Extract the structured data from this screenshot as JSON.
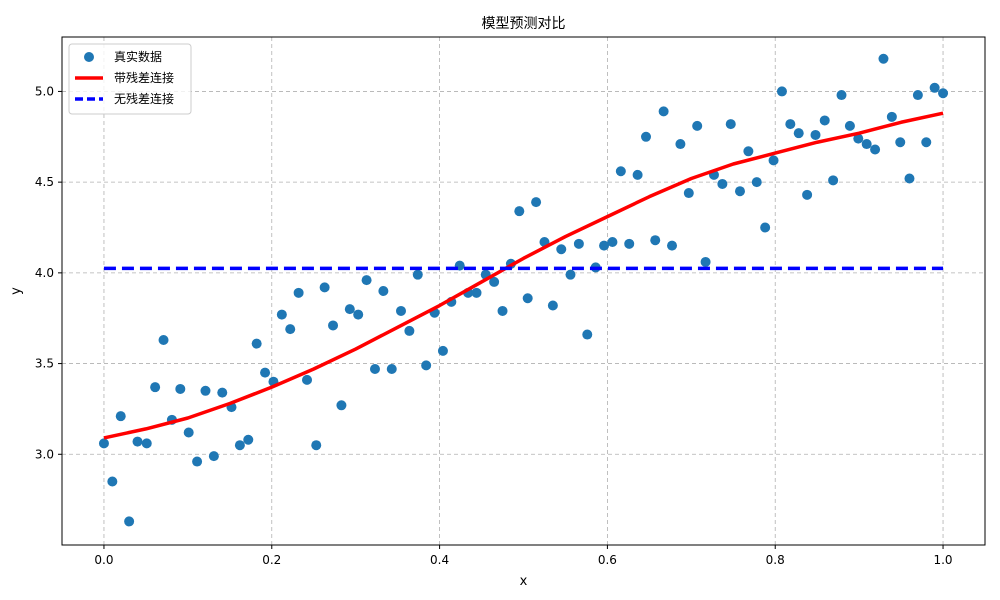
{
  "chart_data": {
    "type": "scatter",
    "title": "模型预测对比",
    "xlabel": "x",
    "ylabel": "y",
    "xlim": [
      -0.05,
      1.05
    ],
    "ylim": [
      2.5,
      5.3
    ],
    "x_ticks": [
      0.0,
      0.2,
      0.4,
      0.6,
      0.8,
      1.0
    ],
    "x_tick_labels": [
      "0.0",
      "0.2",
      "0.4",
      "0.6",
      "0.8",
      "1.0"
    ],
    "y_ticks": [
      3.0,
      3.5,
      4.0,
      4.5,
      5.0
    ],
    "y_tick_labels": [
      "3.0",
      "3.5",
      "4.0",
      "4.5",
      "5.0"
    ],
    "grid": true,
    "legend_position": "top-left",
    "series": [
      {
        "name": "真实数据",
        "kind": "scatter",
        "color": "#1f77b4",
        "x": [
          0.0,
          0.01,
          0.02,
          0.03,
          0.04,
          0.051,
          0.061,
          0.071,
          0.081,
          0.091,
          0.101,
          0.111,
          0.121,
          0.131,
          0.141,
          0.152,
          0.162,
          0.172,
          0.182,
          0.192,
          0.202,
          0.212,
          0.222,
          0.232,
          0.242,
          0.253,
          0.263,
          0.273,
          0.283,
          0.293,
          0.303,
          0.313,
          0.323,
          0.333,
          0.343,
          0.354,
          0.364,
          0.374,
          0.384,
          0.394,
          0.404,
          0.414,
          0.424,
          0.434,
          0.444,
          0.455,
          0.465,
          0.475,
          0.485,
          0.495,
          0.505,
          0.515,
          0.525,
          0.535,
          0.545,
          0.556,
          0.566,
          0.576,
          0.586,
          0.596,
          0.606,
          0.616,
          0.626,
          0.636,
          0.646,
          0.657,
          0.667,
          0.677,
          0.687,
          0.697,
          0.707,
          0.717,
          0.727,
          0.737,
          0.747,
          0.758,
          0.768,
          0.778,
          0.788,
          0.798,
          0.808,
          0.818,
          0.828,
          0.838,
          0.848,
          0.859,
          0.869,
          0.879,
          0.889,
          0.899,
          0.909,
          0.919,
          0.929,
          0.939,
          0.949,
          0.96,
          0.97,
          0.98,
          0.99,
          1.0
        ],
        "y": [
          3.06,
          2.85,
          3.21,
          2.63,
          3.07,
          3.06,
          3.37,
          3.63,
          3.19,
          3.36,
          3.12,
          2.96,
          3.35,
          2.99,
          3.34,
          3.26,
          3.05,
          3.08,
          3.61,
          3.45,
          3.4,
          3.77,
          3.69,
          3.89,
          3.41,
          3.05,
          3.92,
          3.71,
          3.27,
          3.8,
          3.77,
          3.96,
          3.47,
          3.9,
          3.47,
          3.79,
          3.68,
          3.99,
          3.49,
          3.78,
          3.57,
          3.84,
          4.04,
          3.89,
          3.89,
          3.99,
          3.95,
          3.79,
          4.05,
          4.34,
          3.86,
          4.39,
          4.17,
          3.82,
          4.13,
          3.99,
          4.16,
          3.66,
          4.03,
          4.15,
          4.17,
          4.56,
          4.16,
          4.54,
          4.75,
          4.18,
          4.89,
          4.15,
          4.71,
          4.44,
          4.81,
          4.06,
          4.54,
          4.49,
          4.82,
          4.45,
          4.67,
          4.5,
          4.25,
          4.62,
          5.0,
          4.82,
          4.77,
          4.43,
          4.76,
          4.84,
          4.51,
          4.98,
          4.81,
          4.74,
          4.71,
          4.68,
          5.18,
          4.86,
          4.72,
          4.52,
          4.98,
          4.72,
          5.02,
          4.99
        ]
      },
      {
        "name": "带残差连接",
        "kind": "line",
        "style": "solid",
        "color": "#ff0000",
        "x": [
          0.0,
          0.05,
          0.1,
          0.15,
          0.2,
          0.25,
          0.3,
          0.35,
          0.4,
          0.45,
          0.5,
          0.55,
          0.6,
          0.65,
          0.7,
          0.75,
          0.8,
          0.85,
          0.9,
          0.95,
          1.0
        ],
        "y": [
          3.09,
          3.14,
          3.2,
          3.28,
          3.37,
          3.47,
          3.58,
          3.7,
          3.82,
          3.95,
          4.08,
          4.2,
          4.31,
          4.42,
          4.52,
          4.6,
          4.66,
          4.72,
          4.77,
          4.83,
          4.88
        ]
      },
      {
        "name": "无残差连接",
        "kind": "line",
        "style": "dashed",
        "color": "#0000ff",
        "x": [
          0.0,
          1.0
        ],
        "y": [
          4.025,
          4.025
        ]
      }
    ]
  }
}
